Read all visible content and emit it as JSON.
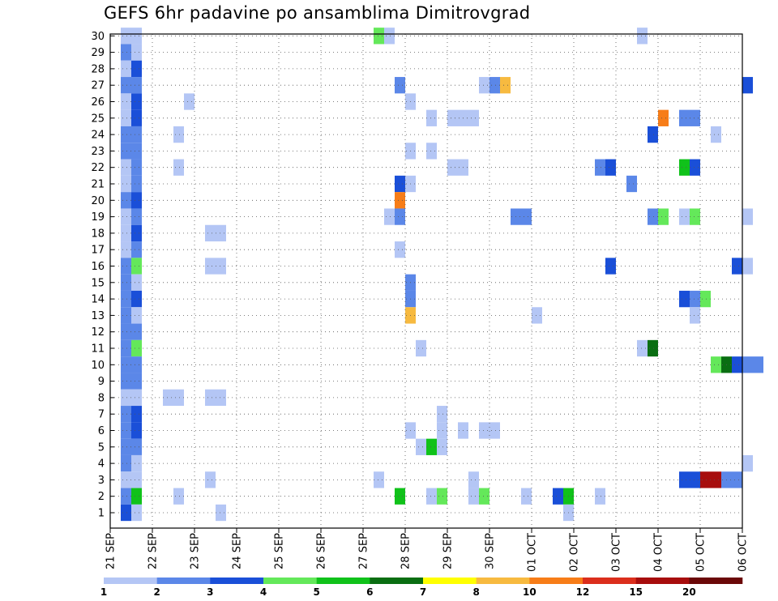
{
  "chart_data": {
    "type": "heatmap",
    "title": "GEFS 6hr padavine po ansamblima Dimitrovgrad",
    "xlabel": "",
    "ylabel": "",
    "x_step_hours": 6,
    "x_start": "21 SEP 00Z",
    "x_range_hours": [
      0,
      360
    ],
    "x_tick_labels": [
      "21 SEP",
      "22 SEP",
      "23 SEP",
      "24 SEP",
      "25 SEP",
      "26 SEP",
      "27 SEP",
      "28 SEP",
      "29 SEP",
      "30 SEP",
      "01 OCT",
      "02 OCT",
      "03 OCT",
      "04 OCT",
      "05 OCT",
      "06 OCT"
    ],
    "y_tick_labels": [
      "1",
      "2",
      "3",
      "4",
      "5",
      "6",
      "7",
      "8",
      "9",
      "10",
      "11",
      "12",
      "13",
      "14",
      "15",
      "16",
      "17",
      "18",
      "19",
      "20",
      "21",
      "22",
      "23",
      "24",
      "25",
      "26",
      "27",
      "28",
      "29",
      "30"
    ],
    "grid": true,
    "legend_position": "bottom",
    "color_scale": {
      "boundaries": [
        "1",
        "2",
        "3",
        "4",
        "5",
        "6",
        "7",
        "8",
        "10",
        "12",
        "15",
        "20"
      ],
      "colors": [
        "#b4c6f5",
        "#5b87e8",
        "#1a4fd8",
        "#64e85a",
        "#10c21a",
        "#0a6e12",
        "#ffff00",
        "#f7ba40",
        "#f77d18",
        "#db2e1c",
        "#a70d0d",
        "#6b0808"
      ]
    },
    "cells_note": "each cell: [member, 6h step index from 21 SEP 00Z, color class 0-11]",
    "cells": [
      [
        30,
        1,
        0
      ],
      [
        30,
        2,
        0
      ],
      [
        30,
        25,
        3
      ],
      [
        30,
        26,
        0
      ],
      [
        30,
        50,
        0
      ],
      [
        29,
        1,
        1
      ],
      [
        29,
        2,
        0
      ],
      [
        28,
        1,
        0
      ],
      [
        28,
        2,
        2
      ],
      [
        27,
        1,
        1
      ],
      [
        27,
        2,
        1
      ],
      [
        27,
        27,
        1
      ],
      [
        27,
        35,
        0
      ],
      [
        27,
        36,
        1
      ],
      [
        27,
        37,
        7
      ],
      [
        27,
        60,
        2
      ],
      [
        26,
        1,
        0
      ],
      [
        26,
        2,
        2
      ],
      [
        26,
        7,
        0
      ],
      [
        26,
        28,
        0
      ],
      [
        25,
        1,
        0
      ],
      [
        25,
        2,
        2
      ],
      [
        25,
        30,
        0
      ],
      [
        25,
        32,
        0
      ],
      [
        25,
        33,
        0
      ],
      [
        25,
        34,
        0
      ],
      [
        25,
        52,
        8
      ],
      [
        25,
        54,
        1
      ],
      [
        25,
        55,
        1
      ],
      [
        24,
        1,
        1
      ],
      [
        24,
        2,
        1
      ],
      [
        24,
        6,
        0
      ],
      [
        24,
        51,
        2
      ],
      [
        24,
        57,
        0
      ],
      [
        23,
        1,
        1
      ],
      [
        23,
        2,
        1
      ],
      [
        23,
        28,
        0
      ],
      [
        23,
        30,
        0
      ],
      [
        22,
        1,
        0
      ],
      [
        22,
        2,
        1
      ],
      [
        22,
        6,
        0
      ],
      [
        22,
        32,
        0
      ],
      [
        22,
        33,
        0
      ],
      [
        22,
        46,
        1
      ],
      [
        22,
        47,
        2
      ],
      [
        22,
        54,
        4
      ],
      [
        22,
        55,
        2
      ],
      [
        21,
        1,
        0
      ],
      [
        21,
        2,
        1
      ],
      [
        21,
        27,
        2
      ],
      [
        21,
        28,
        0
      ],
      [
        21,
        49,
        1
      ],
      [
        20,
        1,
        1
      ],
      [
        20,
        2,
        2
      ],
      [
        20,
        27,
        8
      ],
      [
        19,
        1,
        0
      ],
      [
        19,
        2,
        1
      ],
      [
        19,
        26,
        0
      ],
      [
        19,
        27,
        1
      ],
      [
        19,
        38,
        1
      ],
      [
        19,
        39,
        1
      ],
      [
        19,
        51,
        1
      ],
      [
        19,
        52,
        3
      ],
      [
        19,
        54,
        0
      ],
      [
        19,
        55,
        3
      ],
      [
        19,
        60,
        0
      ],
      [
        18,
        1,
        0
      ],
      [
        18,
        2,
        2
      ],
      [
        18,
        9,
        0
      ],
      [
        18,
        10,
        0
      ],
      [
        17,
        1,
        0
      ],
      [
        17,
        2,
        1
      ],
      [
        17,
        27,
        0
      ],
      [
        16,
        1,
        1
      ],
      [
        16,
        2,
        3
      ],
      [
        16,
        9,
        0
      ],
      [
        16,
        10,
        0
      ],
      [
        16,
        47,
        2
      ],
      [
        16,
        59,
        2
      ],
      [
        16,
        60,
        0
      ],
      [
        15,
        1,
        1
      ],
      [
        15,
        2,
        0
      ],
      [
        15,
        28,
        1
      ],
      [
        14,
        1,
        1
      ],
      [
        14,
        2,
        2
      ],
      [
        14,
        28,
        1
      ],
      [
        14,
        54,
        2
      ],
      [
        14,
        55,
        1
      ],
      [
        14,
        56,
        3
      ],
      [
        13,
        1,
        1
      ],
      [
        13,
        2,
        0
      ],
      [
        13,
        28,
        7
      ],
      [
        13,
        40,
        0
      ],
      [
        13,
        55,
        0
      ],
      [
        12,
        1,
        1
      ],
      [
        12,
        2,
        1
      ],
      [
        11,
        1,
        1
      ],
      [
        11,
        2,
        3
      ],
      [
        11,
        29,
        0
      ],
      [
        11,
        50,
        0
      ],
      [
        11,
        51,
        5
      ],
      [
        10,
        1,
        1
      ],
      [
        10,
        2,
        1
      ],
      [
        10,
        57,
        3
      ],
      [
        10,
        58,
        5
      ],
      [
        10,
        59,
        2
      ],
      [
        10,
        60,
        1
      ],
      [
        10,
        61,
        1
      ],
      [
        9,
        1,
        1
      ],
      [
        9,
        2,
        1
      ],
      [
        8,
        1,
        0
      ],
      [
        8,
        2,
        0
      ],
      [
        8,
        5,
        0
      ],
      [
        8,
        6,
        0
      ],
      [
        8,
        9,
        0
      ],
      [
        8,
        10,
        0
      ],
      [
        7,
        1,
        1
      ],
      [
        7,
        2,
        2
      ],
      [
        7,
        31,
        0
      ],
      [
        6,
        1,
        1
      ],
      [
        6,
        2,
        2
      ],
      [
        6,
        28,
        0
      ],
      [
        6,
        31,
        0
      ],
      [
        6,
        33,
        0
      ],
      [
        6,
        35,
        0
      ],
      [
        6,
        36,
        0
      ],
      [
        5,
        1,
        1
      ],
      [
        5,
        2,
        1
      ],
      [
        5,
        29,
        0
      ],
      [
        5,
        30,
        4
      ],
      [
        5,
        31,
        0
      ],
      [
        4,
        1,
        1
      ],
      [
        4,
        2,
        0
      ],
      [
        4,
        60,
        0
      ],
      [
        3,
        1,
        0
      ],
      [
        3,
        2,
        0
      ],
      [
        3,
        9,
        0
      ],
      [
        3,
        25,
        0
      ],
      [
        3,
        34,
        0
      ],
      [
        3,
        54,
        2
      ],
      [
        3,
        55,
        2
      ],
      [
        3,
        56,
        10
      ],
      [
        3,
        57,
        10
      ],
      [
        3,
        58,
        1
      ],
      [
        3,
        59,
        1
      ],
      [
        2,
        1,
        1
      ],
      [
        2,
        2,
        4
      ],
      [
        2,
        6,
        0
      ],
      [
        2,
        27,
        4
      ],
      [
        2,
        30,
        0
      ],
      [
        2,
        31,
        3
      ],
      [
        2,
        34,
        0
      ],
      [
        2,
        35,
        3
      ],
      [
        2,
        39,
        0
      ],
      [
        2,
        42,
        2
      ],
      [
        2,
        43,
        4
      ],
      [
        2,
        46,
        0
      ],
      [
        1,
        1,
        2
      ],
      [
        1,
        2,
        0
      ],
      [
        1,
        10,
        0
      ],
      [
        1,
        43,
        0
      ]
    ]
  }
}
